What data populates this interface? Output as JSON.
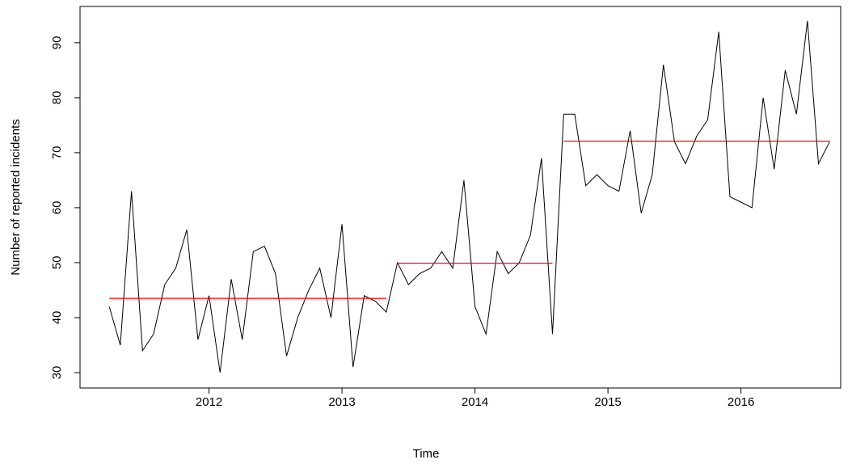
{
  "chart_data": {
    "type": "line",
    "x_label": "Time",
    "y_label": "Number of reported incidents",
    "x": [
      2011.25,
      2011.333,
      2011.417,
      2011.5,
      2011.583,
      2011.667,
      2011.75,
      2011.833,
      2011.917,
      2012,
      2012.083,
      2012.167,
      2012.25,
      2012.333,
      2012.417,
      2012.5,
      2012.583,
      2012.667,
      2012.75,
      2012.833,
      2012.917,
      2013,
      2013.083,
      2013.167,
      2013.25,
      2013.333,
      2013.417,
      2013.5,
      2013.583,
      2013.667,
      2013.75,
      2013.833,
      2013.917,
      2014,
      2014.083,
      2014.167,
      2014.25,
      2014.333,
      2014.417,
      2014.5,
      2014.583,
      2014.667,
      2014.75,
      2014.833,
      2014.917,
      2015,
      2015.083,
      2015.167,
      2015.25,
      2015.333,
      2015.417,
      2015.5,
      2015.583,
      2015.667,
      2015.75,
      2015.833,
      2015.917,
      2016,
      2016.083,
      2016.167,
      2016.25,
      2016.333,
      2016.417,
      2016.5,
      2016.583,
      2016.667
    ],
    "series": [
      {
        "color": "#000000",
        "values": [
          42,
          35,
          63,
          34,
          37,
          46,
          49,
          56,
          36,
          44,
          30,
          47,
          36,
          52,
          53,
          48,
          33,
          40,
          45,
          49,
          40,
          57,
          31,
          44,
          43,
          41,
          50,
          46,
          48,
          49,
          52,
          49,
          65,
          42,
          37,
          52,
          48,
          50,
          55,
          69,
          37,
          77,
          77,
          64,
          66,
          64,
          63,
          74,
          59,
          66,
          86,
          72,
          68,
          73,
          76,
          92,
          62,
          61,
          60,
          80,
          67,
          85,
          77,
          94,
          68,
          72
        ]
      }
    ],
    "segments": [
      {
        "x": [
          2011.25,
          2013.333
        ],
        "value": 43.5
      },
      {
        "x": [
          2013.417,
          2014.583
        ],
        "value": 49.9
      },
      {
        "x": [
          2014.667,
          2016.667
        ],
        "value": 72.1
      }
    ],
    "segment_color": "#ff0000",
    "xlim": [
      2011.03,
      2016.75
    ],
    "xticks": [
      2012,
      2013,
      2014,
      2015,
      2016
    ],
    "ylim": [
      27.2,
      96.6
    ],
    "yticks": [
      30,
      40,
      50,
      60,
      70,
      80,
      90
    ]
  }
}
